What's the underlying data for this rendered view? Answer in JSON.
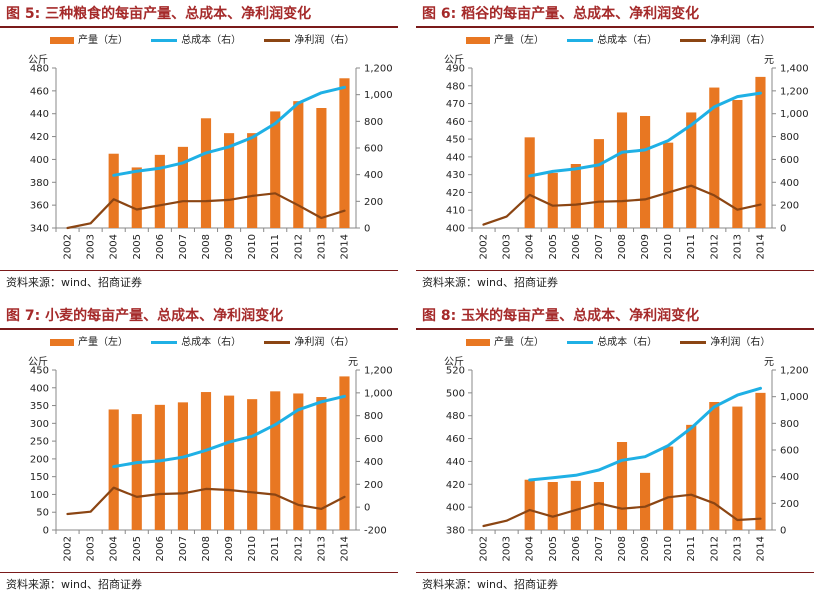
{
  "legend": {
    "production": "产量（左）",
    "cost": "总成本（右）",
    "profit": "净利润（右）"
  },
  "colors": {
    "production": "#e87722",
    "cost": "#1fb0e5",
    "profit": "#8b4513",
    "rule": "#7a1a1a",
    "title": "#a52a2a"
  },
  "source": "资料来源：wind、招商证券",
  "chart_data": [
    {
      "type": "bar",
      "title": "图 5: 三种粮食的每亩产量、总成本、净利润变化",
      "categories": [
        "2002",
        "2003",
        "2004",
        "2005",
        "2006",
        "2007",
        "2008",
        "2009",
        "2010",
        "2011",
        "2012",
        "2013",
        "2014"
      ],
      "y_left_unit": "公斤",
      "y_right_unit": "",
      "ylim_left": [
        340,
        480
      ],
      "yticks_left": [
        "340",
        "360",
        "380",
        "400",
        "420",
        "440",
        "460",
        "480"
      ],
      "ylim_right": [
        0,
        1200
      ],
      "yticks_right": [
        "0",
        "200",
        "400",
        "600",
        "800",
        "1,000",
        "1,200"
      ],
      "series": [
        {
          "name": "产量（左）",
          "type": "bar",
          "axis": "left",
          "values": [
            null,
            null,
            405,
            393,
            404,
            411,
            436,
            423,
            423,
            442,
            451,
            445,
            471
          ]
        },
        {
          "name": "总成本（右）",
          "type": "line",
          "axis": "right",
          "values": [
            null,
            null,
            395,
            426,
            448,
            488,
            563,
            609,
            679,
            784,
            937,
            1014,
            1055
          ]
        },
        {
          "name": "净利润（右）",
          "type": "line",
          "axis": "right",
          "values": [
            0,
            35,
            215,
            139,
            170,
            201,
            202,
            211,
            241,
            260,
            170,
            75,
            130
          ]
        }
      ]
    },
    {
      "type": "bar",
      "title": "图 6: 稻谷的每亩产量、总成本、净利润变化",
      "categories": [
        "2002",
        "2003",
        "2004",
        "2005",
        "2006",
        "2007",
        "2008",
        "2009",
        "2010",
        "2011",
        "2012",
        "2013",
        "2014"
      ],
      "y_left_unit": "公斤",
      "y_right_unit": "元",
      "ylim_left": [
        400,
        490
      ],
      "yticks_left": [
        "400",
        "410",
        "420",
        "430",
        "440",
        "450",
        "460",
        "470",
        "480",
        "490"
      ],
      "ylim_right": [
        0,
        1400
      ],
      "yticks_right": [
        "0",
        "200",
        "400",
        "600",
        "800",
        "1,000",
        "1,200",
        "1,400"
      ],
      "series": [
        {
          "name": "产量（左）",
          "type": "bar",
          "axis": "left",
          "values": [
            null,
            null,
            451,
            431,
            436,
            450,
            465,
            463,
            448,
            465,
            479,
            472,
            485
          ]
        },
        {
          "name": "总成本（右）",
          "type": "line",
          "axis": "right",
          "values": [
            null,
            null,
            455,
            495,
            517,
            552,
            662,
            683,
            765,
            900,
            1060,
            1150,
            1180
          ]
        },
        {
          "name": "净利润（右）",
          "type": "line",
          "axis": "right",
          "values": [
            30,
            100,
            290,
            195,
            205,
            230,
            235,
            250,
            310,
            370,
            285,
            160,
            205
          ]
        }
      ]
    },
    {
      "type": "bar",
      "title": "图 7: 小麦的每亩产量、总成本、净利润变化",
      "categories": [
        "2002",
        "2003",
        "2004",
        "2005",
        "2006",
        "2007",
        "2008",
        "2009",
        "2010",
        "2011",
        "2012",
        "2013",
        "2014"
      ],
      "y_left_unit": "公斤",
      "y_right_unit": "元",
      "ylim_left": [
        0,
        450
      ],
      "yticks_left": [
        "0",
        "50",
        "100",
        "150",
        "200",
        "250",
        "300",
        "350",
        "400",
        "450"
      ],
      "ylim_right": [
        -200,
        1200
      ],
      "yticks_right": [
        "-200",
        "0",
        "200",
        "400",
        "600",
        "800",
        "1,000",
        "1,200"
      ],
      "series": [
        {
          "name": "产量（左）",
          "type": "bar",
          "axis": "left",
          "values": [
            null,
            null,
            339,
            326,
            352,
            359,
            388,
            378,
            368,
            390,
            384,
            374,
            432
          ]
        },
        {
          "name": "总成本（右）",
          "type": "line",
          "axis": "right",
          "values": [
            null,
            null,
            355,
            390,
            405,
            437,
            497,
            569,
            620,
            721,
            852,
            922,
            970
          ]
        },
        {
          "name": "净利润（右）",
          "type": "line",
          "axis": "right",
          "values": [
            -60,
            -40,
            170,
            90,
            115,
            120,
            160,
            150,
            130,
            110,
            20,
            -15,
            90
          ]
        }
      ]
    },
    {
      "type": "bar",
      "title": "图 8: 玉米的每亩产量、总成本、净利润变化",
      "categories": [
        "2002",
        "2003",
        "2004",
        "2005",
        "2006",
        "2007",
        "2008",
        "2009",
        "2010",
        "2011",
        "2012",
        "2013",
        "2014"
      ],
      "y_left_unit": "公斤",
      "y_right_unit": "元",
      "ylim_left": [
        380,
        520
      ],
      "yticks_left": [
        "380",
        "400",
        "420",
        "440",
        "460",
        "480",
        "500",
        "520"
      ],
      "ylim_right": [
        0,
        1200
      ],
      "yticks_right": [
        "0",
        "200",
        "400",
        "600",
        "800",
        "1,000",
        "1,200"
      ],
      "series": [
        {
          "name": "产量（左）",
          "type": "bar",
          "axis": "left",
          "values": [
            null,
            null,
            424,
            422,
            423,
            422,
            457,
            430,
            453,
            472,
            492,
            488,
            500
          ]
        },
        {
          "name": "总成本（右）",
          "type": "line",
          "axis": "right",
          "values": [
            null,
            null,
            375,
            392,
            410,
            450,
            523,
            550,
            633,
            764,
            924,
            1012,
            1063
          ]
        },
        {
          "name": "净利润（右）",
          "type": "line",
          "axis": "right",
          "values": [
            30,
            70,
            150,
            100,
            150,
            200,
            160,
            175,
            245,
            265,
            200,
            75,
            85
          ]
        }
      ]
    }
  ]
}
